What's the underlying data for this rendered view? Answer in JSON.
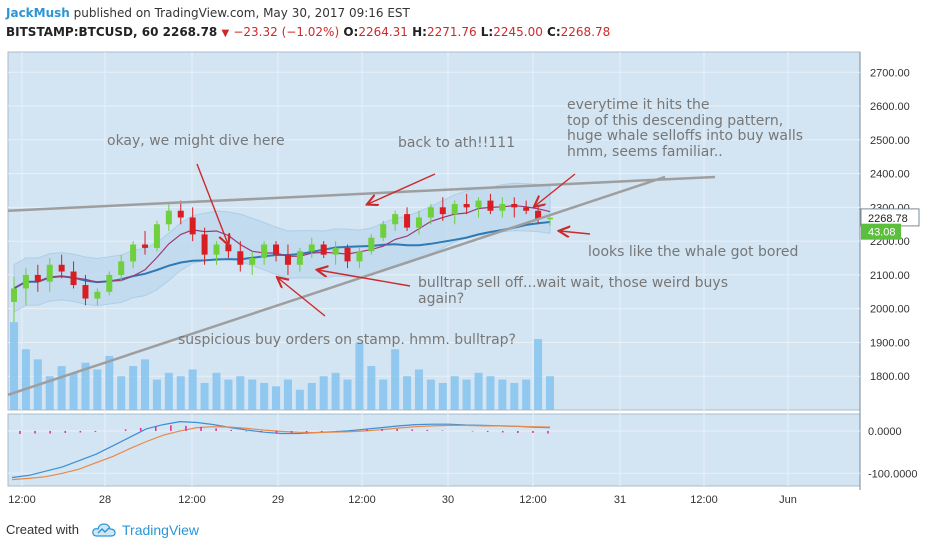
{
  "header": {
    "author": "JackMush",
    "published_text": "published on TradingView.com, May 30, 2017 09:16 EST",
    "symbol": "BITSTAMP:BTCUSD, 60",
    "last": "2268.78",
    "change": "−23.32 (−1.02%)",
    "o_label": "O:",
    "o_value": "2264.31",
    "h_label": "H:",
    "h_value": "2271.76",
    "l_label": "L:",
    "l_value": "2245.00",
    "c_label": "C:",
    "c_value": "2268.78"
  },
  "footer": {
    "created_with": "Created with",
    "brand": "TradingView"
  },
  "colors": {
    "panel_bg": "#d3e4f2",
    "grid": "#e8f0f8",
    "bull": "#6fcf3c",
    "bear": "#d81e23",
    "ma_blue": "#2f79b5",
    "ma_purple": "#9b3b73",
    "trend": "#9e9e9e",
    "arrow": "#cc2a2a",
    "vol": "#7fc0ef",
    "annot": "#777777"
  },
  "chart_data": [
    {
      "type": "candlestick",
      "title": "BITSTAMP:BTCUSD, 60",
      "ylim": [
        1700,
        2760
      ],
      "y_ticks": [
        "2700.00",
        "2600.00",
        "2500.00",
        "2400.00",
        "2300.00",
        "2200.00",
        "2100.00",
        "2000.00",
        "1900.00",
        "1800.00"
      ],
      "x_ticks": [
        "12:00",
        "28",
        "12:00",
        "29",
        "12:00",
        "30",
        "12:00",
        "31",
        "12:00",
        "Jun"
      ],
      "price_labels": [
        {
          "value": "2268.78",
          "price": 2268.78
        },
        {
          "value": "43.08",
          "price": 2228
        }
      ],
      "ohlc": [
        [
          2020,
          2095,
          1960,
          2060
        ],
        [
          2060,
          2120,
          2010,
          2100
        ],
        [
          2100,
          2130,
          2050,
          2080
        ],
        [
          2080,
          2150,
          2050,
          2130
        ],
        [
          2130,
          2160,
          2090,
          2110
        ],
        [
          2110,
          2140,
          2060,
          2070
        ],
        [
          2070,
          2100,
          2010,
          2030
        ],
        [
          2030,
          2060,
          2010,
          2050
        ],
        [
          2050,
          2110,
          2040,
          2100
        ],
        [
          2100,
          2160,
          2080,
          2140
        ],
        [
          2140,
          2200,
          2120,
          2190
        ],
        [
          2190,
          2230,
          2160,
          2180
        ],
        [
          2180,
          2260,
          2170,
          2250
        ],
        [
          2250,
          2310,
          2230,
          2290
        ],
        [
          2290,
          2320,
          2250,
          2270
        ],
        [
          2270,
          2300,
          2200,
          2220
        ],
        [
          2220,
          2240,
          2130,
          2160
        ],
        [
          2160,
          2200,
          2130,
          2190
        ],
        [
          2190,
          2220,
          2150,
          2170
        ],
        [
          2170,
          2200,
          2110,
          2130
        ],
        [
          2130,
          2170,
          2100,
          2150
        ],
        [
          2150,
          2200,
          2130,
          2190
        ],
        [
          2190,
          2200,
          2140,
          2160
        ],
        [
          2160,
          2190,
          2100,
          2130
        ],
        [
          2130,
          2180,
          2110,
          2170
        ],
        [
          2170,
          2210,
          2150,
          2190
        ],
        [
          2190,
          2200,
          2150,
          2160
        ],
        [
          2160,
          2200,
          2130,
          2180
        ],
        [
          2180,
          2190,
          2120,
          2140
        ],
        [
          2140,
          2180,
          2120,
          2170
        ],
        [
          2170,
          2220,
          2160,
          2210
        ],
        [
          2210,
          2260,
          2200,
          2250
        ],
        [
          2250,
          2290,
          2230,
          2280
        ],
        [
          2280,
          2300,
          2230,
          2240
        ],
        [
          2240,
          2290,
          2220,
          2270
        ],
        [
          2270,
          2310,
          2250,
          2300
        ],
        [
          2300,
          2330,
          2260,
          2280
        ],
        [
          2280,
          2320,
          2250,
          2310
        ],
        [
          2310,
          2340,
          2280,
          2300
        ],
        [
          2300,
          2330,
          2270,
          2320
        ],
        [
          2320,
          2340,
          2280,
          2290
        ],
        [
          2290,
          2330,
          2270,
          2310
        ],
        [
          2310,
          2330,
          2270,
          2300
        ],
        [
          2300,
          2320,
          2280,
          2290
        ],
        [
          2290,
          2305,
          2250,
          2265
        ],
        [
          2265,
          2272,
          2245,
          2269
        ]
      ],
      "volume": [
        1960,
        1880,
        1850,
        1800,
        1830,
        1810,
        1840,
        1820,
        1860,
        1800,
        1830,
        1850,
        1790,
        1810,
        1800,
        1820,
        1780,
        1810,
        1790,
        1800,
        1790,
        1780,
        1770,
        1790,
        1760,
        1780,
        1800,
        1810,
        1790,
        1900,
        1830,
        1790,
        1880,
        1800,
        1820,
        1790,
        1780,
        1800,
        1790,
        1810,
        1800,
        1790,
        1780,
        1790,
        1910,
        1800
      ],
      "annotations": [
        "okay, we might dive here",
        "back to ath!!111",
        "everytime it hits the",
        "top of this descending pattern,",
        "huge whale selloffs into buy walls",
        "hmm, seems familiar..",
        "looks like the whale got bored",
        "bulltrap sell off...wait wait, those weird buys",
        "again?",
        "suspicious buy orders on stamp. hmm. bulltrap?"
      ]
    },
    {
      "type": "line",
      "title": "",
      "ylim": [
        -130,
        40
      ],
      "y_ticks": [
        "0.0000",
        "-100.0000"
      ],
      "series": [
        {
          "name": "",
          "color": "#3a8fd6",
          "values": [
            -110,
            -105,
            -95,
            -85,
            -70,
            -55,
            -35,
            -15,
            5,
            15,
            22,
            20,
            15,
            8,
            2,
            -3,
            -6,
            -6,
            -4,
            -2,
            0,
            4,
            8,
            12,
            15,
            16,
            16,
            14,
            13,
            12,
            11,
            9,
            8
          ]
        },
        {
          "name": "",
          "color": "#e8894a",
          "values": [
            -115,
            -112,
            -108,
            -100,
            -90,
            -75,
            -60,
            -42,
            -25,
            -10,
            0,
            8,
            10,
            9,
            6,
            2,
            -1,
            -3,
            -4,
            -3,
            -2,
            0,
            3,
            7,
            10,
            12,
            13,
            13,
            12,
            12,
            11,
            10,
            9
          ]
        }
      ],
      "hist": [
        -6,
        -5,
        -5,
        -4,
        -3,
        -2,
        0,
        3,
        6,
        9,
        11,
        10,
        8,
        5,
        2,
        -1,
        -3,
        -4,
        -4,
        -3,
        -2,
        -1,
        1,
        3,
        4,
        4,
        3,
        2,
        1,
        0,
        -1,
        -2,
        -3,
        -4,
        -4,
        -5
      ]
    }
  ]
}
